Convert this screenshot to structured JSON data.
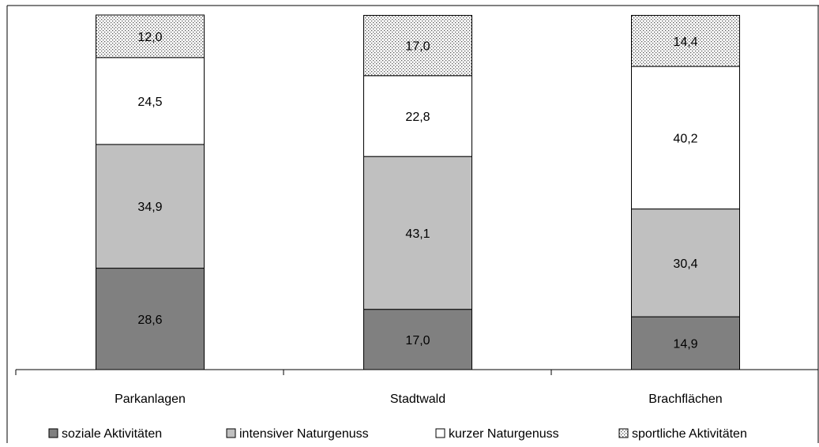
{
  "chart_data": {
    "type": "bar",
    "stacked": true,
    "categories": [
      "Parkanlagen",
      "Stadtwald",
      "Brachflächen"
    ],
    "series": [
      {
        "name": "soziale Aktivitäten",
        "values": [
          28.6,
          17.0,
          14.9
        ],
        "labels": [
          "28,6",
          "17,0",
          "14,9"
        ],
        "color": "#808080",
        "pattern": "solid"
      },
      {
        "name": "intensiver Naturgenuss",
        "values": [
          34.9,
          43.1,
          30.4
        ],
        "labels": [
          "34,9",
          "43,1",
          "30,4"
        ],
        "color": "#c0c0c0",
        "pattern": "solid"
      },
      {
        "name": "kurzer Naturgenuss",
        "values": [
          24.5,
          22.8,
          40.2
        ],
        "labels": [
          "24,5",
          "22,8",
          "40,2"
        ],
        "color": "#ffffff",
        "pattern": "solid"
      },
      {
        "name": "sportliche Aktivitäten",
        "values": [
          12.0,
          17.0,
          14.4
        ],
        "labels": [
          "12,0",
          "17,0",
          "14,4"
        ],
        "color": "#ffffff",
        "pattern": "dots"
      }
    ],
    "ylim": [
      0,
      100
    ],
    "grid": false,
    "legend_position": "bottom"
  }
}
